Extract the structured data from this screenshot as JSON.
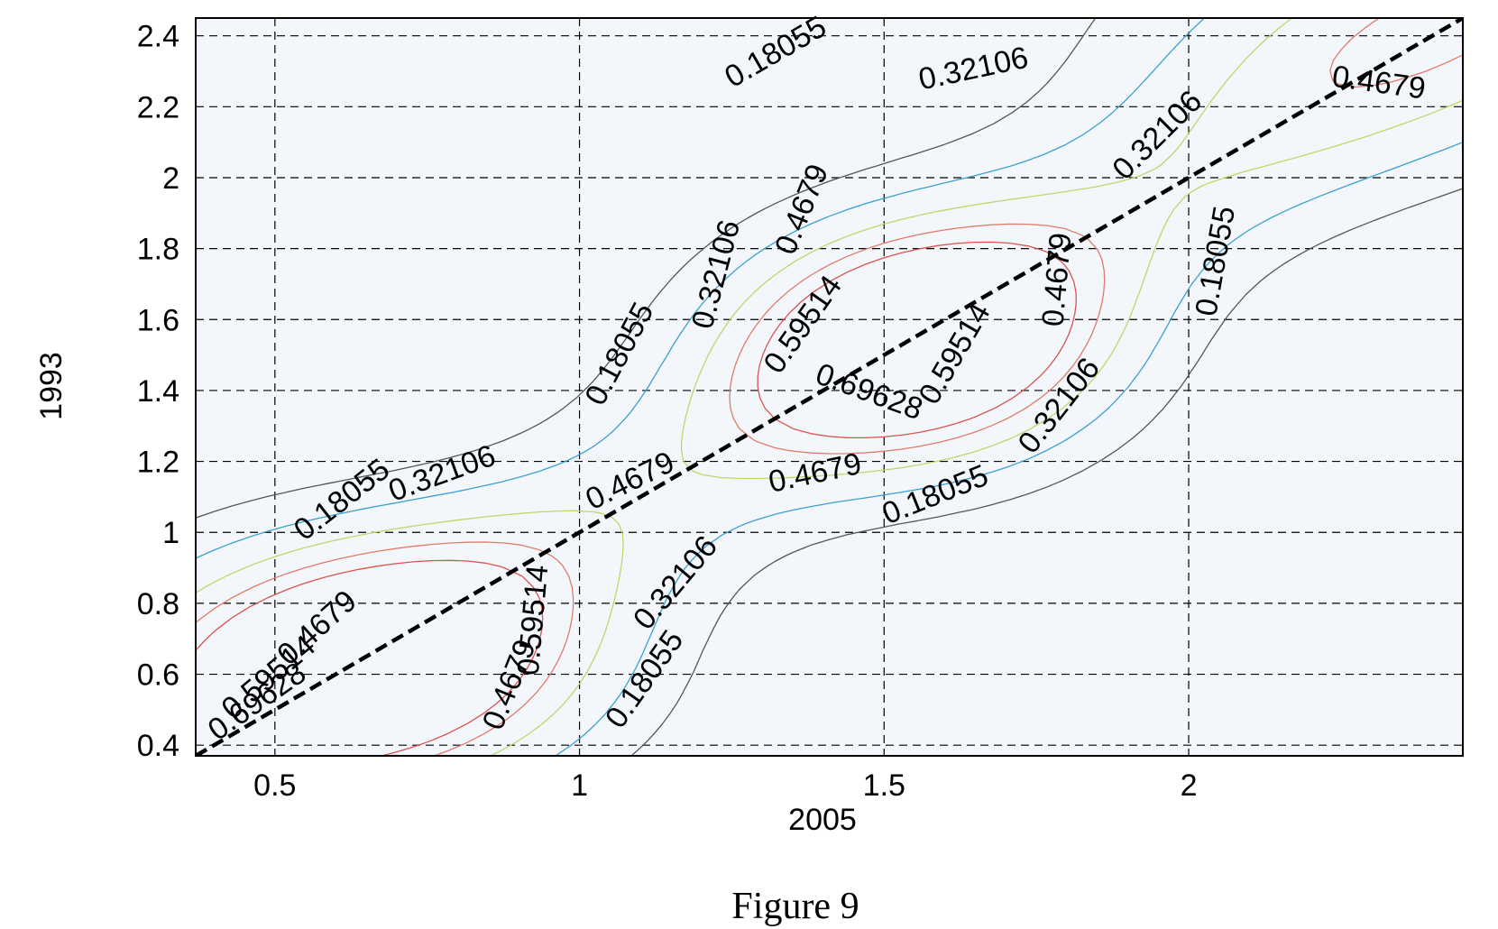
{
  "chart_data": {
    "type": "contour",
    "title": "",
    "xlabel": "2005",
    "ylabel": "1993",
    "xlim": [
      0.37,
      2.45
    ],
    "ylim": [
      0.37,
      2.45
    ],
    "x_ticks": [
      "0.5",
      "1",
      "1.5",
      "2"
    ],
    "x_tick_values": [
      0.5,
      1,
      1.5,
      2
    ],
    "y_ticks": [
      "0.4",
      "0.6",
      "0.8",
      "1",
      "1.2",
      "1.4",
      "1.6",
      "1.8",
      "2",
      "2.2",
      "2.4"
    ],
    "y_tick_values": [
      0.4,
      0.6,
      0.8,
      1,
      1.2,
      1.4,
      1.6,
      1.8,
      2,
      2.2,
      2.4
    ],
    "grid": true,
    "background_color": "#f3f7fc",
    "levels": [
      {
        "value": "0.18055",
        "color": "#555555"
      },
      {
        "value": "0.32106",
        "color": "#3aa0cf"
      },
      {
        "value": "0.4679",
        "color": "#b9d96a"
      },
      {
        "value": "0.59514",
        "color": "#e07a6a"
      },
      {
        "value": "0.69628",
        "color": "#d9534f"
      }
    ],
    "reference_line": {
      "style": "dashed",
      "color": "#000000",
      "x": [
        0.37,
        2.45
      ],
      "y": [
        0.37,
        2.45
      ]
    },
    "contour_labels": [
      {
        "text": "0.18055",
        "x": 0.62,
        "y": 1.07,
        "angle": -38
      },
      {
        "text": "0.32106",
        "x": 0.78,
        "y": 1.14,
        "angle": -20
      },
      {
        "text": "0.4679",
        "x": 1.09,
        "y": 1.12,
        "angle": -26
      },
      {
        "text": "0.4679",
        "x": 1.39,
        "y": 1.14,
        "angle": -12
      },
      {
        "text": "0.18055",
        "x": 1.59,
        "y": 1.08,
        "angle": -22
      },
      {
        "text": "0.18055",
        "x": 1.08,
        "y": 1.49,
        "angle": -62
      },
      {
        "text": "0.32106",
        "x": 1.24,
        "y": 1.72,
        "angle": -75
      },
      {
        "text": "0.4679",
        "x": 1.38,
        "y": 1.9,
        "angle": -68
      },
      {
        "text": "0.59514",
        "x": 1.38,
        "y": 1.57,
        "angle": -55
      },
      {
        "text": "0.69628",
        "x": 1.47,
        "y": 1.37,
        "angle": 20
      },
      {
        "text": "0.59514",
        "x": 1.63,
        "y": 1.49,
        "angle": -60
      },
      {
        "text": "0.32106",
        "x": 1.8,
        "y": 1.34,
        "angle": -52
      },
      {
        "text": "0.4679",
        "x": 1.8,
        "y": 1.71,
        "angle": -85
      },
      {
        "text": "0.18055",
        "x": 2.06,
        "y": 1.76,
        "angle": -80
      },
      {
        "text": "0.32106",
        "x": 1.96,
        "y": 2.1,
        "angle": -45
      },
      {
        "text": "0.18055",
        "x": 1.33,
        "y": 2.33,
        "angle": -30
      },
      {
        "text": "0.32106",
        "x": 1.65,
        "y": 2.28,
        "angle": -12
      },
      {
        "text": "0.4679",
        "x": 2.31,
        "y": 2.24,
        "angle": 8
      },
      {
        "text": "0.4679",
        "x": 0.58,
        "y": 0.71,
        "angle": -42
      },
      {
        "text": "0.59514",
        "x": 0.5,
        "y": 0.57,
        "angle": -40
      },
      {
        "text": "0.69628",
        "x": 0.48,
        "y": 0.5,
        "angle": -35
      },
      {
        "text": "0.59514",
        "x": 0.94,
        "y": 0.75,
        "angle": -85
      },
      {
        "text": "0.4679",
        "x": 0.9,
        "y": 0.56,
        "angle": -68
      },
      {
        "text": "0.32106",
        "x": 1.17,
        "y": 0.84,
        "angle": -50
      },
      {
        "text": "0.18055",
        "x": 1.12,
        "y": 0.57,
        "angle": -55
      }
    ]
  },
  "caption": "Figure 9"
}
